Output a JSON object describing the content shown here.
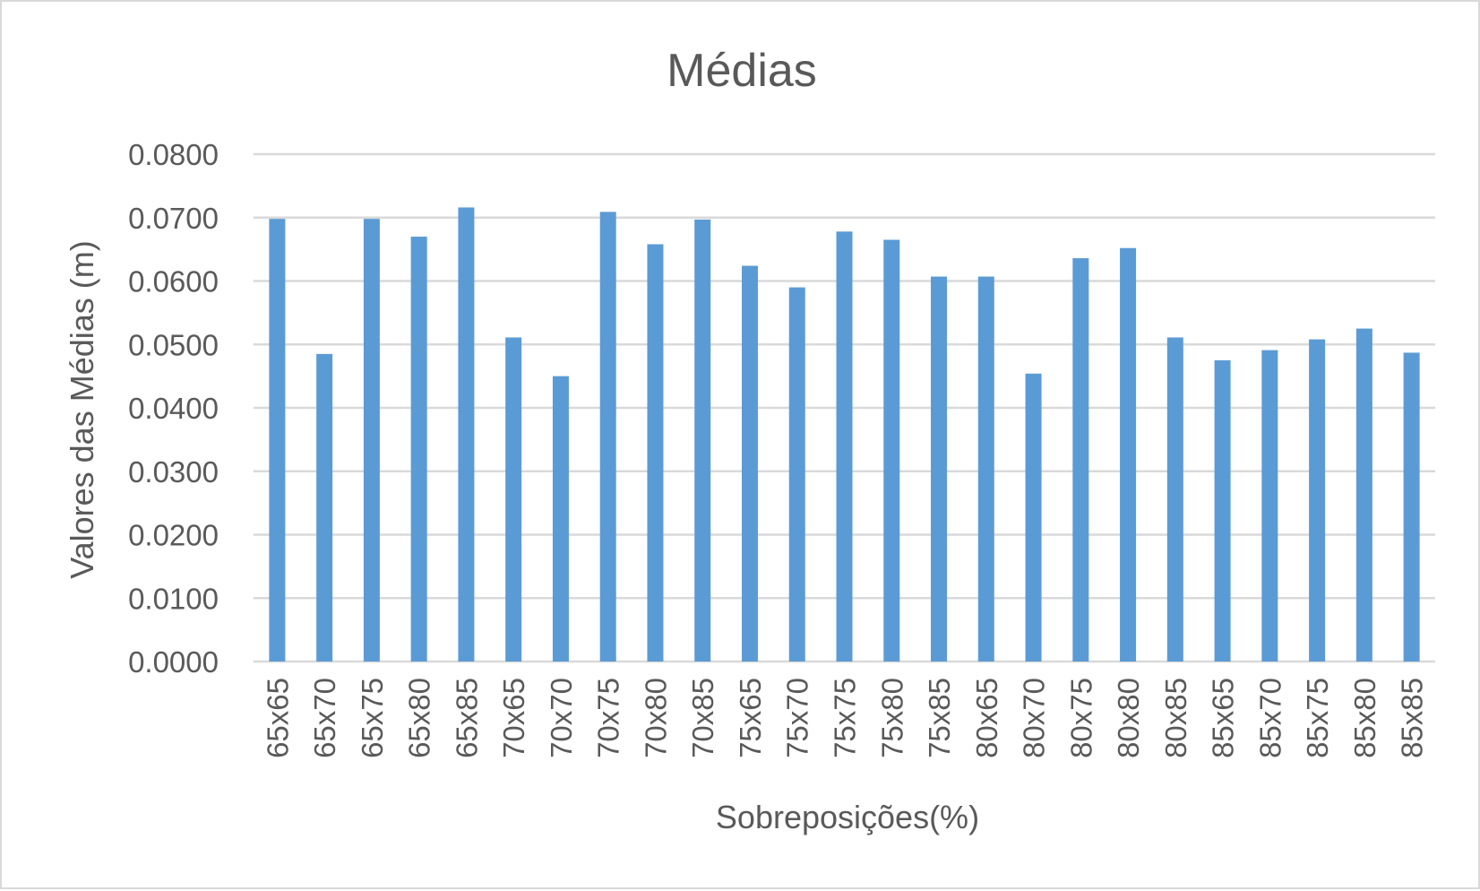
{
  "chart_data": {
    "type": "bar",
    "title": "Médias",
    "xlabel": "Sobreposições(%)",
    "ylabel": "Valores das Médias (m)",
    "ylim": [
      0,
      0.08
    ],
    "yticks": [
      "0.0000",
      "0.0100",
      "0.0200",
      "0.0300",
      "0.0400",
      "0.0500",
      "0.0600",
      "0.0700",
      "0.0800"
    ],
    "grid": true,
    "bar_color": "#5b9bd5",
    "categories": [
      "65x65",
      "65x70",
      "65x75",
      "65x80",
      "65x85",
      "70x65",
      "70x70",
      "70x75",
      "70x80",
      "70x85",
      "75x65",
      "75x70",
      "75x75",
      "75x80",
      "75x85",
      "80x65",
      "80x70",
      "80x75",
      "80x80",
      "80x85",
      "85x65",
      "85x70",
      "85x75",
      "85x80",
      "85x85"
    ],
    "values": [
      0.0698,
      0.0485,
      0.0698,
      0.067,
      0.0716,
      0.0511,
      0.045,
      0.0709,
      0.0658,
      0.0697,
      0.0624,
      0.059,
      0.0678,
      0.0665,
      0.0607,
      0.0607,
      0.0454,
      0.0636,
      0.0652,
      0.0511,
      0.0475,
      0.0491,
      0.0508,
      0.0525,
      0.0487
    ]
  }
}
